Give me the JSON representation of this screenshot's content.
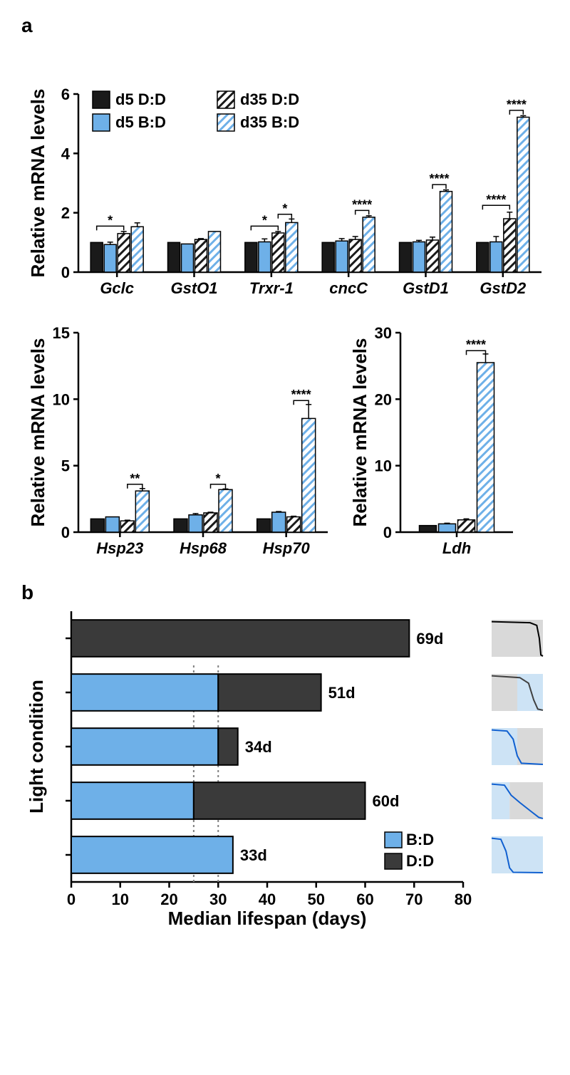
{
  "panel_a_label": "a",
  "panel_b_label": "b",
  "colors": {
    "black": "#1a1a1a",
    "blue": "#6eb0e8",
    "blue_stroke": "#3a6fa0",
    "dark_gray": "#3a3a3a",
    "light_gray_bg": "#d9d9d9",
    "light_blue_bg": "#cde3f5",
    "dotted": "#808080"
  },
  "legend_a": {
    "items": [
      {
        "label": "d5 D:D",
        "fill": "black",
        "hatch": false
      },
      {
        "label": "d5 B:D",
        "fill": "blue",
        "hatch": false
      },
      {
        "label": "d35 D:D",
        "fill": "white",
        "hatch": true,
        "hatch_color": "black"
      },
      {
        "label": "d35 B:D",
        "fill": "white",
        "hatch": true,
        "hatch_color": "blue"
      }
    ]
  },
  "chart_a1": {
    "y_title": "Relative mRNA levels",
    "ylim": [
      0,
      6
    ],
    "yticks": [
      0,
      2,
      4,
      6
    ],
    "categories": [
      "Gclc",
      "GstO1",
      "Trxr-1",
      "cncC",
      "GstD1",
      "GstD2"
    ],
    "series": [
      {
        "values": [
          1.0,
          1.0,
          1.0,
          1.0,
          1.0,
          1.0
        ],
        "err": [
          0.0,
          0.0,
          0.0,
          0.0,
          0.0,
          0.0
        ]
      },
      {
        "values": [
          0.93,
          0.95,
          1.02,
          1.05,
          1.02,
          1.02
        ],
        "err": [
          0.08,
          0.0,
          0.1,
          0.08,
          0.05,
          0.18
        ]
      },
      {
        "values": [
          1.3,
          1.1,
          1.32,
          1.1,
          1.08,
          1.8
        ],
        "err": [
          0.07,
          0.03,
          0.05,
          0.1,
          0.1,
          0.22
        ]
      },
      {
        "values": [
          1.53,
          1.37,
          1.67,
          1.85,
          2.72,
          5.22
        ],
        "err": [
          0.13,
          0.0,
          0.12,
          0.05,
          0.05,
          0.05
        ]
      }
    ],
    "sigs": [
      {
        "cat": 0,
        "from": 0,
        "to": 2,
        "label": "*",
        "y": 1.55
      },
      {
        "cat": 2,
        "from": 0,
        "to": 2,
        "label": "*",
        "y": 1.55
      },
      {
        "cat": 2,
        "from": 2,
        "to": 3,
        "label": "*",
        "y": 1.95
      },
      {
        "cat": 3,
        "from": 2,
        "to": 3,
        "label": "****",
        "y": 2.08
      },
      {
        "cat": 4,
        "from": 2,
        "to": 3,
        "label": "****",
        "y": 2.95
      },
      {
        "cat": 5,
        "from": 0,
        "to": 2,
        "label": "****",
        "y": 2.25
      },
      {
        "cat": 5,
        "from": 2,
        "to": 3,
        "label": "****",
        "y": 5.45
      }
    ]
  },
  "chart_a2": {
    "y_title": "Relative mRNA levels",
    "ylim": [
      0,
      15
    ],
    "yticks": [
      0,
      5,
      10,
      15
    ],
    "categories": [
      "Hsp23",
      "Hsp68",
      "Hsp70"
    ],
    "series": [
      {
        "values": [
          1.0,
          1.0,
          1.0
        ],
        "err": [
          0,
          0,
          0
        ]
      },
      {
        "values": [
          1.15,
          1.3,
          1.5
        ],
        "err": [
          0,
          0.1,
          0.05
        ]
      },
      {
        "values": [
          0.85,
          1.45,
          1.15
        ],
        "err": [
          0.05,
          0.05,
          0.05
        ]
      },
      {
        "values": [
          3.1,
          3.2,
          8.55
        ],
        "err": [
          0.18,
          0.05,
          1.05
        ]
      }
    ],
    "sigs": [
      {
        "cat": 0,
        "from": 2,
        "to": 3,
        "label": "**",
        "y": 3.6
      },
      {
        "cat": 1,
        "from": 2,
        "to": 3,
        "label": "*",
        "y": 3.6
      },
      {
        "cat": 2,
        "from": 2,
        "to": 3,
        "label": "****",
        "y": 9.9
      }
    ]
  },
  "chart_a3": {
    "y_title": "Relative mRNA levels",
    "ylim": [
      0,
      30
    ],
    "yticks": [
      0,
      10,
      20,
      30
    ],
    "categories": [
      "Ldh"
    ],
    "series": [
      {
        "values": [
          1.0
        ],
        "err": [
          0
        ]
      },
      {
        "values": [
          1.25
        ],
        "err": [
          0.1
        ]
      },
      {
        "values": [
          1.85
        ],
        "err": [
          0.15
        ]
      },
      {
        "values": [
          25.5
        ],
        "err": [
          1.3
        ]
      }
    ],
    "sigs": [
      {
        "cat": 0,
        "from": 2,
        "to": 3,
        "label": "****",
        "y": 27.3
      }
    ]
  },
  "chart_b": {
    "x_title": "Median lifespan (days)",
    "y_title": "Light condition",
    "xlim": [
      0,
      80
    ],
    "xticks": [
      0,
      10,
      20,
      30,
      40,
      50,
      60,
      70,
      80
    ],
    "bars": [
      {
        "segments": [
          {
            "color": "dark",
            "len": 69
          }
        ],
        "label": "69d",
        "mini": {
          "bg1": "gray",
          "bg1_w": 1.0,
          "line": "black"
        }
      },
      {
        "segments": [
          {
            "color": "blue",
            "len": 30
          },
          {
            "color": "dark",
            "len": 21
          }
        ],
        "label": "51d",
        "mini": {
          "bg1": "gray",
          "bg1_w": 0.5,
          "bg2": "blue",
          "line": "darkgray"
        }
      },
      {
        "segments": [
          {
            "color": "blue",
            "len": 30
          },
          {
            "color": "dark",
            "len": 4
          }
        ],
        "label": "34d",
        "mini": {
          "bg1": "blue",
          "bg1_w": 0.5,
          "bg2": "gray",
          "line": "blue"
        }
      },
      {
        "segments": [
          {
            "color": "blue",
            "len": 25
          },
          {
            "color": "dark",
            "len": 35
          }
        ],
        "label": "60d",
        "mini": {
          "bg1": "blue",
          "bg1_w": 0.35,
          "bg2": "gray",
          "line": "blue"
        }
      },
      {
        "segments": [
          {
            "color": "blue",
            "len": 33
          }
        ],
        "label": "33d",
        "mini": {
          "bg1": "blue",
          "bg1_w": 1.0,
          "line": "blue"
        }
      }
    ],
    "dotted_x": [
      25,
      30
    ],
    "legend": [
      {
        "label": "B:D",
        "color": "blue"
      },
      {
        "label": "D:D",
        "color": "dark"
      }
    ]
  }
}
